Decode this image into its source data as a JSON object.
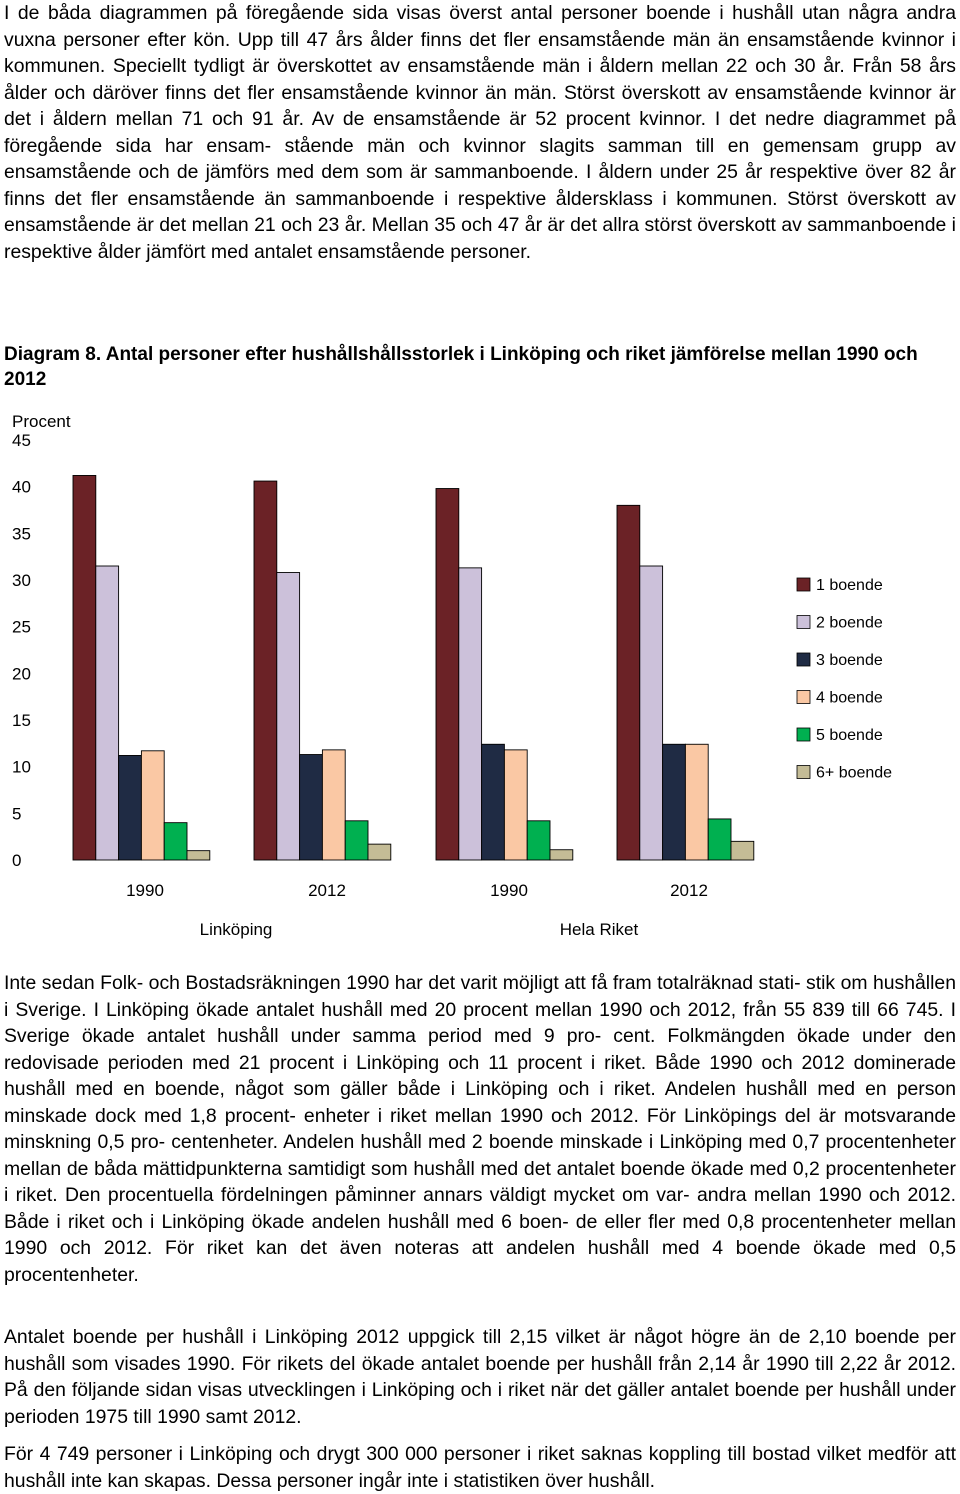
{
  "text": {
    "para1": "I de båda diagrammen på föregående sida visas överst antal personer boende i hushåll utan några andra vuxna personer efter kön. Upp till 47 års ålder finns det fler ensamstående män än ensamstående kvinnor i kommunen. Speciellt tydligt är överskottet av ensamstående män i åldern mellan 22 och 30 år. Från 58 års ålder och däröver finns det fler ensamstående kvinnor än män. Störst överskott av ensamstående kvinnor är det i åldern mellan 71 och 91 år. Av de ensamstående är 52 procent kvinnor. I det nedre diagrammet på föregående sida har ensam- stående män och kvinnor slagits samman till en gemensam grupp av ensamstående och de jämförs med dem som är sammanboende. I åldern under 25 år respektive över 82 år finns det fler ensamstående än sammanboende i respektive åldersklass i kommunen. Störst överskott av ensamstående är det mellan 21 och 23 år. Mellan 35 och 47 år är det allra störst överskott av sammanboende i respektive ålder jämfört med antalet ensamstående personer.",
    "caption": "Diagram 8. Antal personer efter hushållshållsstorlek i Linköping och riket jämförelse mellan 1990 och 2012",
    "para2": "Inte sedan Folk- och Bostadsräkningen 1990 har det varit möjligt att få fram totalräknad stati- stik om hushållen i Sverige. I Linköping ökade antalet hushåll med 20 procent mellan 1990 och 2012, från 55 839 till 66 745. I Sverige ökade antalet hushåll under samma period med 9 pro- cent. Folkmängden ökade under den redovisade perioden med 21 procent i Linköping och 11 procent i riket. Både 1990 och 2012 dominerade hushåll med en boende, något som gäller både i Linköping och i riket. Andelen hushåll med en person minskade dock med 1,8 procent- enheter i riket mellan 1990 och 2012. För Linköpings del är motsvarande minskning 0,5 pro- centenheter. Andelen hushåll med 2 boende minskade i Linköping med 0,7 procentenheter mellan de båda mättidpunkterna samtidigt som hushåll med det antalet boende ökade med 0,2 procentenheter i riket. Den procentuella fördelningen påminner annars väldigt mycket om var- andra mellan 1990 och 2012. Både i riket och i Linköping ökade andelen hushåll med 6 boen- de eller fler med 0,8 procentenheter mellan 1990 och 2012. För riket kan det även noteras att andelen hushåll med 4 boende ökade med 0,5 procentenheter.",
    "para3": "Antalet boende per hushåll i Linköping 2012 uppgick till 2,15 vilket är något högre än de 2,10 boende per hushåll som visades 1990. För rikets del ökade antalet boende per hushåll från 2,14 år 1990 till 2,22 år 2012. På den följande sidan visas utvecklingen i Linköping och i riket när det gäller antalet boende per hushåll under perioden 1975 till 1990 samt 2012.",
    "para4": "För 4 749 personer i Linköping och drygt 300 000 personer i riket saknas koppling till bostad vilket medför att hushåll inte kan skapas. Dessa personer ingår inte i statistiken över hushåll."
  },
  "chart_data": {
    "type": "bar",
    "ylabel": "Procent",
    "ylim": [
      0,
      45
    ],
    "yticks": [
      0,
      5,
      10,
      15,
      20,
      25,
      30,
      35,
      40,
      45
    ],
    "categories": [
      "1990",
      "2012",
      "1990",
      "2012"
    ],
    "groups": [
      "Linköping",
      "Hela Riket"
    ],
    "legend_position": "right",
    "grid": false,
    "series": [
      {
        "name": "1 boende",
        "color": "#6B2226",
        "values": [
          41.2,
          40.6,
          39.8,
          38.0
        ]
      },
      {
        "name": "2 boende",
        "color": "#CCC1DA",
        "values": [
          31.5,
          30.8,
          31.3,
          31.5
        ]
      },
      {
        "name": "3 boende",
        "color": "#1F2B44",
        "values": [
          11.2,
          11.3,
          12.4,
          12.4
        ]
      },
      {
        "name": "4 boende",
        "color": "#FAC8A4",
        "values": [
          11.7,
          11.8,
          11.8,
          12.4
        ]
      },
      {
        "name": "5 boende",
        "color": "#00B050",
        "values": [
          4.0,
          4.2,
          4.2,
          4.4
        ]
      },
      {
        "name": "6+ boende",
        "color": "#C4BC96",
        "values": [
          1.0,
          1.7,
          1.1,
          2.0
        ]
      }
    ]
  }
}
